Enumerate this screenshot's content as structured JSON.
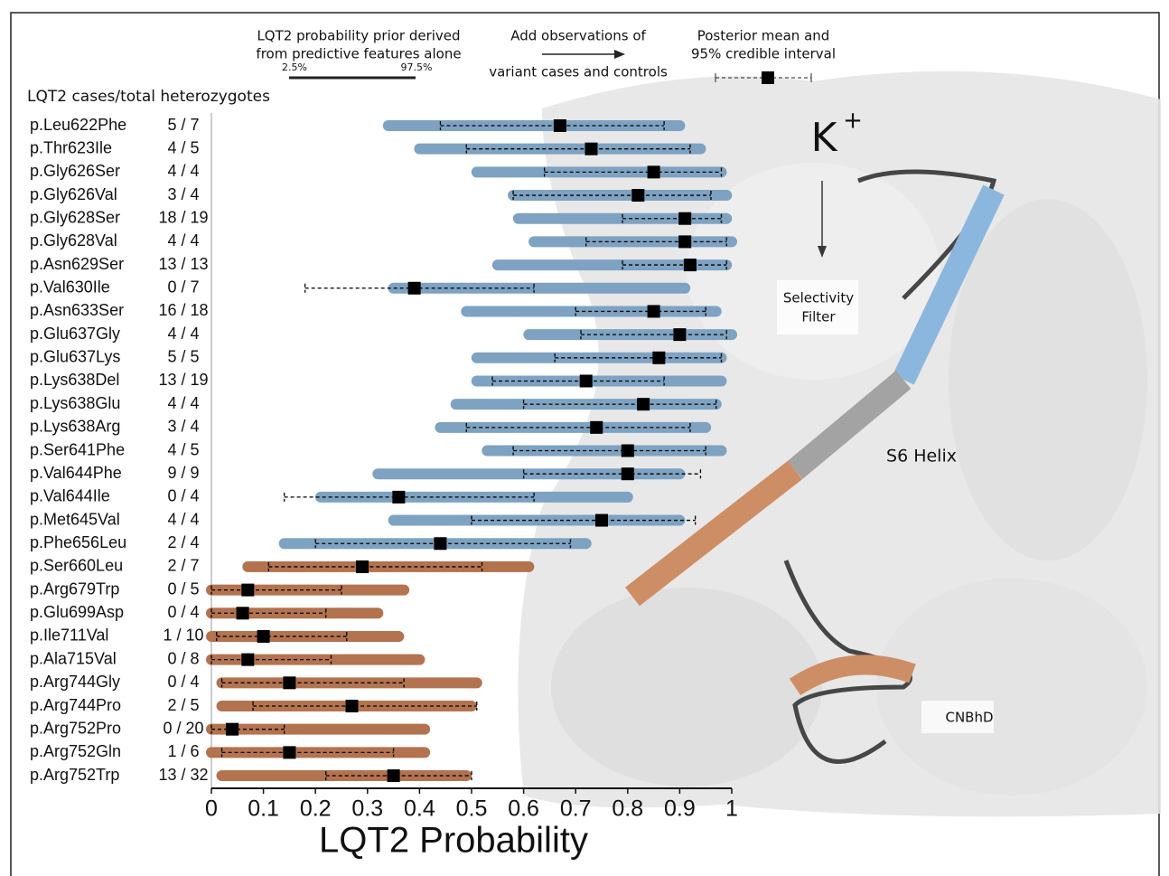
{
  "chart_data": {
    "type": "forest",
    "xlabel": "LQT2 Probability",
    "count_header": "LQT2 cases/total heterozygotes",
    "categories": [
      "p.Leu622Phe",
      "p.Thr623Ile",
      "p.Gly626Ser",
      "p.Gly626Val",
      "p.Gly628Ser",
      "p.Gly628Val",
      "p.Asn629Ser",
      "p.Val630Ile",
      "p.Asn633Ser",
      "p.Glu637Gly",
      "p.Glu637Lys",
      "p.Lys638Del",
      "p.Lys638Glu",
      "p.Lys638Arg",
      "p.Ser641Phe",
      "p.Val644Phe",
      "p.Val644Ile",
      "p.Met645Val",
      "p.Phe656Leu",
      "p.Ser660Leu",
      "p.Arg679Trp",
      "p.Glu699Asp",
      "p.Ile711Val",
      "p.Ala715Val",
      "p.Arg744Gly",
      "p.Arg744Pro",
      "p.Arg752Pro",
      "p.Arg752Gln",
      "p.Arg752Trp"
    ],
    "counts": [
      "5 / 7",
      "4 / 5",
      "4 / 4",
      "3 / 4",
      "18 / 19",
      "4 / 4",
      "13 / 13",
      "0 / 7",
      "16 / 18",
      "4 / 4",
      "5 / 5",
      "13 / 19",
      "4 / 4",
      "3 / 4",
      "4 / 5",
      "9 / 9",
      "0 / 4",
      "4 / 4",
      "2 / 4",
      "2 / 7",
      "0 / 5",
      "0 / 4",
      "1 / 10",
      "0 / 8",
      "0 / 4",
      "2 / 5",
      "0 / 20",
      "1 / 6",
      "13 / 32"
    ],
    "prior_low": [
      0.34,
      0.4,
      0.51,
      0.58,
      0.59,
      0.62,
      0.55,
      0.35,
      0.49,
      0.61,
      0.51,
      0.51,
      0.47,
      0.44,
      0.53,
      0.32,
      0.21,
      0.35,
      0.14,
      0.07,
      0.0,
      0.0,
      0.0,
      0.0,
      0.02,
      0.02,
      0.0,
      0.0,
      0.02
    ],
    "prior_high": [
      0.9,
      0.94,
      0.98,
      0.99,
      0.99,
      1.0,
      0.99,
      0.91,
      0.97,
      1.0,
      0.98,
      0.98,
      0.97,
      0.95,
      0.98,
      0.9,
      0.8,
      0.9,
      0.72,
      0.61,
      0.37,
      0.32,
      0.36,
      0.4,
      0.51,
      0.5,
      0.41,
      0.41,
      0.49
    ],
    "mean": [
      0.67,
      0.73,
      0.85,
      0.82,
      0.91,
      0.91,
      0.92,
      0.39,
      0.85,
      0.9,
      0.86,
      0.72,
      0.83,
      0.74,
      0.8,
      0.8,
      0.36,
      0.75,
      0.44,
      0.29,
      0.07,
      0.06,
      0.1,
      0.07,
      0.15,
      0.27,
      0.04,
      0.15,
      0.35
    ],
    "ci_low": [
      0.44,
      0.49,
      0.64,
      0.58,
      0.79,
      0.72,
      0.79,
      0.18,
      0.7,
      0.71,
      0.66,
      0.54,
      0.6,
      0.49,
      0.58,
      0.6,
      0.14,
      0.5,
      0.2,
      0.11,
      0.0,
      0.0,
      0.01,
      0.0,
      0.02,
      0.08,
      0.0,
      0.02,
      0.22
    ],
    "ci_high": [
      0.87,
      0.92,
      0.98,
      0.96,
      0.98,
      0.99,
      0.99,
      0.62,
      0.95,
      0.99,
      0.98,
      0.87,
      0.97,
      0.92,
      0.95,
      0.94,
      0.62,
      0.93,
      0.69,
      0.52,
      0.25,
      0.22,
      0.26,
      0.23,
      0.37,
      0.51,
      0.14,
      0.35,
      0.5
    ],
    "colors": [
      "#7ea2c1",
      "#7ea2c1",
      "#7ea2c1",
      "#7ea2c1",
      "#7ea2c1",
      "#7ea2c1",
      "#7ea2c1",
      "#7ea2c1",
      "#7ea2c1",
      "#7ea2c1",
      "#7ea2c1",
      "#7ea2c1",
      "#7ea2c1",
      "#7ea2c1",
      "#7ea2c1",
      "#7ea2c1",
      "#7ea2c1",
      "#7ea2c1",
      "#7ea2c1",
      "#b3734f",
      "#b3734f",
      "#b3734f",
      "#b3734f",
      "#b3734f",
      "#b3734f",
      "#b3734f",
      "#b3734f",
      "#b3734f",
      "#b3734f"
    ],
    "xlim": [
      0,
      1
    ],
    "xticks": [
      0,
      0.1,
      0.2,
      0.3,
      0.4,
      0.5,
      0.6,
      0.7,
      0.8,
      0.9,
      1
    ],
    "annotations": {
      "prior_line1": "LQT2 probability prior derived",
      "prior_line2": "from predictive features alone",
      "prior_low_pct": "2.5%",
      "prior_high_pct": "97.5%",
      "add_line1": "Add observations of",
      "add_line2": "variant cases and controls",
      "post_line1": "Posterior mean and",
      "post_line2": "95% credible interval",
      "k": "K",
      "plus": "+",
      "sf_line1": "Selectivity",
      "sf_line2": "Filter",
      "s6": "S6 Helix",
      "cnbhd": "CNBhD"
    }
  }
}
